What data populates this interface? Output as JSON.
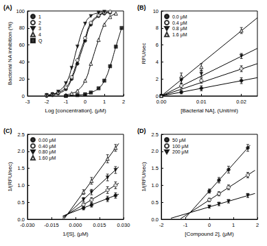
{
  "chart_data": [
    {
      "type": "line",
      "title": "(A)",
      "x_label": "Log [concentration], (μM)",
      "y_label": "Bacterial NA inhibition (%)",
      "xlim": [
        -3,
        2
      ],
      "xticks": [
        -3,
        -2,
        -1,
        0,
        1,
        2
      ],
      "ylim": [
        0,
        100
      ],
      "yticks": [
        0,
        20,
        40,
        60,
        80,
        100
      ],
      "grid": false,
      "legend": "upper left",
      "series": [
        {
          "name": "1",
          "marker": "circle",
          "color": "#000000",
          "line_style": "solid",
          "x": [
            -2,
            -1.7,
            -1.4,
            -1,
            -0.7,
            -0.4,
            0,
            0.3,
            0.7,
            1,
            1.3
          ],
          "values": [
            0,
            1,
            3,
            8,
            20,
            38,
            65,
            84,
            94,
            97,
            98
          ]
        },
        {
          "name": "2",
          "marker": "open_circle",
          "color": "#000000",
          "line_style": "solid",
          "x": [
            -2,
            -1.7,
            -1.4,
            -1,
            -0.7,
            -0.4,
            0,
            0.3,
            0.7,
            1,
            1.3
          ],
          "values": [
            1,
            2,
            4,
            10,
            22,
            42,
            68,
            86,
            95,
            98,
            99
          ]
        },
        {
          "name": "3",
          "marker": "triangle_down",
          "color": "#000000",
          "line_style": "solid",
          "x": [
            -2,
            -1.7,
            -1.4,
            -1,
            -0.7,
            -0.4,
            0,
            0.3,
            0.7,
            1
          ],
          "values": [
            1,
            2,
            5,
            15,
            33,
            58,
            85,
            94,
            98,
            99
          ]
        },
        {
          "name": "4",
          "marker": "open_triangle",
          "color": "#000000",
          "line_style": "solid",
          "x": [
            -1,
            -0.7,
            -0.4,
            0,
            0.3,
            0.7,
            1,
            1.3,
            1.6
          ],
          "values": [
            1,
            3,
            6,
            18,
            38,
            66,
            84,
            93,
            97
          ]
        },
        {
          "name": "Q",
          "marker": "square",
          "color": "#000000",
          "line_style": "solid",
          "x": [
            -1,
            -0.4,
            0,
            0.3,
            0.7,
            1,
            1.3,
            1.6,
            1.9
          ],
          "values": [
            0,
            1,
            2,
            4,
            9,
            18,
            35,
            58,
            80
          ]
        }
      ]
    },
    {
      "type": "scatter",
      "title": "(B)",
      "x_label": "[Bacterial NA], (Unit/ml)",
      "y_label": "RFU/sec",
      "xlim": [
        0,
        0.024
      ],
      "xticks": [
        {
          "value": 0,
          "label": "0.00"
        },
        {
          "value": 0.01,
          "label": "0.01"
        },
        {
          "value": 0.02,
          "label": "0.02"
        }
      ],
      "ylim": [
        0,
        10
      ],
      "yticks": [
        0,
        2,
        4,
        6,
        8,
        10
      ],
      "grid": false,
      "legend": "upper left",
      "series": [
        {
          "name": "0.0 μM",
          "marker": "circle",
          "color": "#000000",
          "line_style": "solid",
          "x": [
            0,
            0.005,
            0.01,
            0.02
          ],
          "values": [
            0,
            0.45,
            0.9,
            1.8
          ],
          "errors": [
            0.1,
            0.2,
            0.3,
            0.35
          ],
          "fit": {
            "x": [
              0,
              0.024
            ],
            "values": [
              0,
              2.15
            ]
          }
        },
        {
          "name": "0.4 μM",
          "marker": "open_circle",
          "color": "#000000",
          "line_style": "solid",
          "x": [
            0,
            0.005,
            0.01,
            0.02
          ],
          "values": [
            0,
            1.2,
            1.8,
            3.2
          ],
          "errors": [
            0.1,
            0.3,
            0.3,
            0.35
          ],
          "fit": {
            "x": [
              0,
              0.024
            ],
            "values": [
              0,
              3.8
            ]
          }
        },
        {
          "name": "0.8 μM",
          "marker": "triangle_down",
          "color": "#000000",
          "line_style": "solid",
          "x": [
            0,
            0.005,
            0.01,
            0.02
          ],
          "values": [
            0,
            1.8,
            2.6,
            4.7
          ],
          "errors": [
            0.1,
            0.3,
            0.35,
            0.3
          ],
          "fit": {
            "x": [
              0,
              0.024
            ],
            "values": [
              0,
              5.6
            ]
          }
        },
        {
          "name": "1.6 μM",
          "marker": "open_triangle",
          "color": "#000000",
          "line_style": "solid",
          "x": [
            0,
            0.005,
            0.01,
            0.02
          ],
          "values": [
            0,
            2.3,
            3.4,
            7.7
          ],
          "errors": [
            0.1,
            0.4,
            0.4,
            0.35
          ],
          "fit": {
            "x": [
              0,
              0.024
            ],
            "values": [
              0,
              9.2
            ]
          }
        }
      ]
    },
    {
      "type": "scatter",
      "title": "(C)",
      "x_label": "1/[S], (μM)",
      "y_label": "1/(RFU/sec)",
      "xlim": [
        -0.03,
        0.03
      ],
      "xticks": [
        {
          "value": -0.03,
          "label": "-0.030"
        },
        {
          "value": -0.015,
          "label": "-0.015"
        },
        {
          "value": 0,
          "label": "0.000"
        },
        {
          "value": 0.015,
          "label": "0.015"
        },
        {
          "value": 0.03,
          "label": "0.030"
        }
      ],
      "ylim": [
        0,
        2.5
      ],
      "yticks": [
        {
          "value": 0,
          "label": "0.0"
        },
        {
          "value": 0.5,
          "label": "0.5"
        },
        {
          "value": 1,
          "label": "1.0"
        },
        {
          "value": 1.5,
          "label": "1.5"
        },
        {
          "value": 2,
          "label": "2.0"
        },
        {
          "value": 2.5,
          "label": "2.5"
        }
      ],
      "grid": false,
      "legend": "upper left",
      "series": [
        {
          "name": "0.00 μM",
          "marker": "circle",
          "color": "#000000",
          "line_style": "solid",
          "x": [
            0.005,
            0.01,
            0.02,
            0.025
          ],
          "values": [
            0.33,
            0.42,
            0.6,
            0.7
          ],
          "errors": [
            0.05,
            0.06,
            0.08,
            0.08
          ],
          "fit": {
            "x": [
              -0.008,
              0.027
            ],
            "values": [
              0.095,
              0.74
            ]
          }
        },
        {
          "name": "0.40 μM",
          "marker": "open_circle",
          "color": "#000000",
          "line_style": "solid",
          "x": [
            0.005,
            0.01,
            0.02,
            0.025
          ],
          "values": [
            0.43,
            0.57,
            0.86,
            1.0
          ],
          "errors": [
            0.05,
            0.07,
            0.1,
            0.1
          ],
          "fit": {
            "x": [
              -0.008,
              0.027
            ],
            "values": [
              0.06,
              1.06
            ]
          }
        },
        {
          "name": "0.80 μM",
          "marker": "triangle_down",
          "color": "#000000",
          "line_style": "solid",
          "x": [
            0.005,
            0.01,
            0.02,
            0.025
          ],
          "values": [
            0.58,
            0.8,
            1.23,
            1.45
          ],
          "errors": [
            0.06,
            0.08,
            0.1,
            0.1
          ],
          "fit": {
            "x": [
              -0.008,
              0.027
            ],
            "values": [
              0.02,
              1.54
            ]
          }
        },
        {
          "name": "1.60 μM",
          "marker": "open_triangle",
          "color": "#000000",
          "line_style": "solid",
          "x": [
            0.005,
            0.01,
            0.02,
            0.025
          ],
          "values": [
            0.8,
            1.13,
            1.78,
            2.1
          ],
          "errors": [
            0.07,
            0.1,
            0.12,
            0.1
          ],
          "fit": {
            "x": [
              -0.007,
              0.027
            ],
            "values": [
              0.02,
              2.23
            ]
          }
        }
      ]
    },
    {
      "type": "scatter",
      "title": "(D)",
      "x_label": "[Compound 2], (μM)",
      "y_label": "1/(RFU/sec)",
      "xlim": [
        -2,
        2
      ],
      "xticks": [
        -2,
        -1,
        0,
        1,
        2
      ],
      "ylim": [
        0,
        2.5
      ],
      "yticks": [
        {
          "value": 0,
          "label": "0.0"
        },
        {
          "value": 0.5,
          "label": "0.5"
        },
        {
          "value": 1,
          "label": "1.0"
        },
        {
          "value": 1.5,
          "label": "1.5"
        },
        {
          "value": 2,
          "label": "2.0"
        },
        {
          "value": 2.5,
          "label": "2.5"
        }
      ],
      "grid": false,
      "legend": "upper left",
      "series": [
        {
          "name": "50 μM",
          "marker": "circle",
          "color": "#000000",
          "line_style": "solid",
          "x": [
            0,
            0.4,
            0.8,
            1.6
          ],
          "values": [
            0.83,
            1.15,
            1.46,
            2.1
          ],
          "errors": [
            0.06,
            0.08,
            0.1,
            0.1
          ],
          "fit": {
            "x": [
              -1.0,
              1.7
            ],
            "values": [
              0.04,
              2.18
            ]
          }
        },
        {
          "name": "100 μM",
          "marker": "open_circle",
          "color": "#000000",
          "line_style": "solid",
          "x": [
            0,
            0.4,
            0.8,
            1.6
          ],
          "values": [
            0.57,
            0.75,
            0.94,
            1.3
          ],
          "errors": [
            0.05,
            0.06,
            0.07,
            0.08
          ],
          "fit": {
            "x": [
              -1.2,
              1.9
            ],
            "values": [
              0.016,
              1.44
            ]
          }
        },
        {
          "name": "200 μM",
          "marker": "triangle_down",
          "color": "#000000",
          "line_style": "solid",
          "x": [
            0,
            0.4,
            0.8,
            1.6
          ],
          "values": [
            0.37,
            0.45,
            0.53,
            0.7
          ],
          "errors": [
            0.04,
            0.05,
            0.05,
            0.06
          ],
          "fit": {
            "x": [
              -1.6,
              1.9
            ],
            "values": [
              0.03,
              0.76
            ]
          }
        }
      ]
    }
  ]
}
